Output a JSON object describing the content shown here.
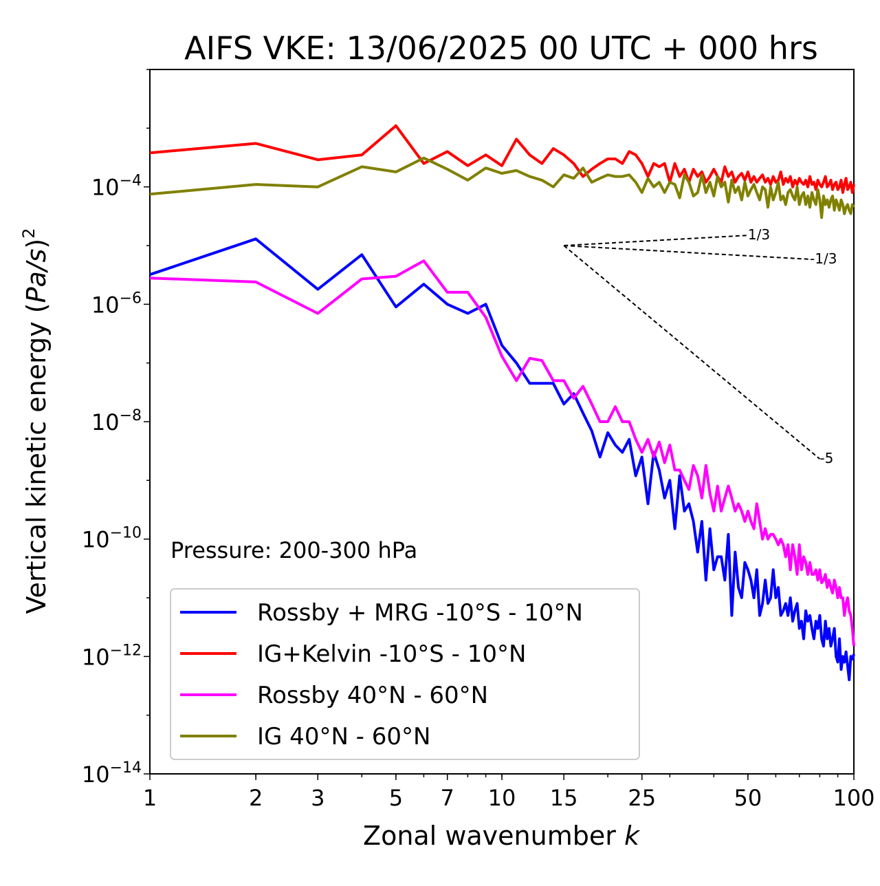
{
  "chart_data": {
    "type": "line",
    "title": "AIFS VKE: 13/06/2025 00 UTC + 000 hrs",
    "xlabel": "Zonal wavenumber k",
    "xlabel_text": "Zonal wavenumber ",
    "xlabel_var": "k",
    "ylabel": "Vertical kinetic energy (Pa/s)^2",
    "ylabel_text": "Vertical kinetic energy (",
    "ylabel_var": "Pa/s",
    "ylabel_close": ")",
    "ylabel_exp": "2",
    "xscale": "log",
    "yscale": "log",
    "xlim": [
      1,
      100
    ],
    "ylim": [
      1e-14,
      0.01
    ],
    "x_ticks": [
      1,
      2,
      3,
      5,
      7,
      10,
      15,
      25,
      50,
      100
    ],
    "x_tick_labels": [
      "1",
      "2",
      "3",
      "5",
      "7",
      "10",
      "15",
      "25",
      "50",
      "100"
    ],
    "y_ticks": [
      -14,
      -12,
      -10,
      -8,
      -6,
      -4
    ],
    "y_tick_base": "10",
    "y_tick_exps": [
      "−14",
      "−12",
      "−10",
      "−8",
      "−6",
      "−4"
    ],
    "annotation": "Pressure: 200-300 hPa",
    "legend_position": "lower-left",
    "grid": false,
    "x": [
      1,
      2,
      3,
      4,
      5,
      6,
      7,
      8,
      9,
      10,
      11,
      12,
      13,
      14,
      15,
      16,
      17,
      18,
      19,
      20,
      21,
      22,
      23,
      24,
      25,
      26,
      27,
      28,
      29,
      30,
      31,
      32,
      33,
      34,
      35,
      36,
      37,
      38,
      39,
      40,
      41,
      42,
      43,
      44,
      45,
      46,
      47,
      48,
      49,
      50,
      51,
      52,
      53,
      54,
      55,
      56,
      57,
      58,
      59,
      60,
      61,
      62,
      63,
      64,
      65,
      66,
      67,
      68,
      69,
      70,
      71,
      72,
      73,
      74,
      75,
      76,
      77,
      78,
      79,
      80,
      81,
      82,
      83,
      84,
      85,
      86,
      87,
      88,
      89,
      90,
      91,
      92,
      93,
      94,
      95,
      96,
      97,
      98,
      99,
      100
    ],
    "series": [
      {
        "name": "Rossby + MRG -10°S - 10°N",
        "color": "#0000ff",
        "values": [
          3.2e-06,
          1.3e-05,
          1.8e-06,
          7e-06,
          9e-07,
          2.2e-06,
          1e-06,
          7e-07,
          1e-06,
          2e-07,
          1e-07,
          4.5e-08,
          4.5e-08,
          4.5e-08,
          2e-08,
          3e-08,
          1.4e-08,
          7e-09,
          2.5e-09,
          6.5e-09,
          4e-09,
          3e-09,
          5e-09,
          1.2e-09,
          2.5e-09,
          4e-10,
          3e-09,
          1.5e-09,
          5e-10,
          1e-09,
          1.5e-10,
          1.2e-09,
          3e-10,
          4e-10,
          2e-10,
          6e-11,
          2e-10,
          2e-11,
          1.5e-10,
          3e-11,
          5e-11,
          5e-11,
          2e-11,
          1.2e-10,
          5e-12,
          6e-11,
          1.5e-11,
          1e-11,
          4e-11,
          3e-11,
          2e-11,
          1e-11,
          3e-11,
          5e-12,
          8e-12,
          2e-11,
          8e-12,
          1e-11,
          3e-11,
          1e-11,
          1.5e-11,
          5e-12,
          6e-12,
          8e-12,
          5e-12,
          1e-11,
          4e-12,
          6e-12,
          8e-12,
          3e-12,
          4e-12,
          2e-12,
          6e-12,
          4e-12,
          5e-12,
          3e-12,
          2e-12,
          4e-12,
          3e-12,
          5e-12,
          2e-12,
          1.5e-12,
          4e-12,
          2e-12,
          3e-12,
          1.5e-12,
          2e-12,
          3e-12,
          1e-12,
          8e-13,
          2e-12,
          6e-13,
          1e-12,
          8e-13,
          1.2e-12,
          7e-13,
          4e-13,
          1e-12,
          9e-13,
          1.1e-12
        ]
      },
      {
        "name": "IG+Kelvin -10°S - 10°N",
        "color": "#ff0000",
        "values": [
          0.00038,
          0.00055,
          0.00029,
          0.00035,
          0.0011,
          0.00025,
          0.0004,
          0.00023,
          0.00035,
          0.00023,
          0.00065,
          0.00035,
          0.00025,
          0.00045,
          0.00035,
          0.00025,
          0.00015,
          0.0002,
          0.00025,
          0.0003,
          0.0003,
          0.00025,
          0.0004,
          0.00035,
          0.00025,
          0.00015,
          0.00025,
          0.00022,
          0.00025,
          0.00012,
          0.00025,
          0.00015,
          0.0002,
          0.00012,
          0.0002,
          0.00015,
          0.00018,
          0.00012,
          0.00015,
          0.0002,
          0.00015,
          0.00012,
          0.00022,
          0.00015,
          0.00018,
          0.00012,
          0.00015,
          0.00017,
          0.00013,
          0.00018,
          0.00012,
          0.00015,
          0.00012,
          0.00014,
          0.00016,
          0.00012,
          0.00014,
          0.00011,
          0.00015,
          0.00012,
          0.00013,
          0.00018,
          0.00011,
          0.00014,
          0.00012,
          0.00015,
          0.0001,
          0.00013,
          0.00011,
          0.00014,
          0.00012,
          0.00011,
          0.00013,
          0.0001,
          0.00015,
          0.00011,
          0.00012,
          9e-05,
          0.00013,
          0.00011,
          0.0001,
          0.00012,
          0.00015,
          0.0001,
          0.00011,
          0.00013,
          9e-05,
          0.00011,
          0.00012,
          9e-05,
          0.0001,
          0.00013,
          8e-05,
          0.00011,
          0.00014,
          9e-05,
          0.0001,
          0.00012,
          8e-05,
          0.00011
        ]
      },
      {
        "name": "Rossby 40°N - 60°N",
        "color": "#ff00ff",
        "values": [
          2.8e-06,
          2.4e-06,
          7e-07,
          2.7e-06,
          3e-06,
          5.5e-06,
          1.6e-06,
          1.6e-06,
          6e-07,
          1.3e-07,
          5e-08,
          1.2e-07,
          1.1e-07,
          5e-08,
          5e-08,
          2.5e-08,
          4e-08,
          2e-08,
          1e-08,
          1e-08,
          1.8e-08,
          1e-08,
          1e-08,
          5e-09,
          3e-09,
          5e-09,
          2.5e-09,
          4.5e-09,
          2e-09,
          4e-09,
          1.5e-09,
          1.5e-09,
          1e-09,
          7e-10,
          1.8e-09,
          1.2e-09,
          5e-10,
          1.8e-09,
          6e-10,
          3e-10,
          8e-10,
          3e-10,
          5e-10,
          8e-10,
          5e-10,
          3e-10,
          4e-10,
          3e-10,
          2e-10,
          3e-10,
          2e-10,
          1.5e-10,
          4e-10,
          2e-10,
          1e-10,
          1.5e-10,
          1e-10,
          1.2e-10,
          1.2e-10,
          1e-10,
          8e-11,
          1e-10,
          8e-11,
          5e-11,
          8e-11,
          3e-11,
          8e-11,
          5e-11,
          2.5e-11,
          8e-11,
          3e-11,
          5e-11,
          4e-11,
          2.5e-11,
          4e-11,
          2.5e-11,
          2.5e-11,
          3e-11,
          2e-11,
          3e-11,
          1.8e-11,
          2e-11,
          2.5e-11,
          1.5e-11,
          2e-11,
          1.5e-11,
          1.2e-11,
          2e-11,
          1.5e-11,
          1e-11,
          1.5e-11,
          1e-11,
          1e-11,
          5e-12,
          8e-12,
          1e-11,
          6e-12,
          5e-12,
          3e-12,
          1.5e-12
        ]
      },
      {
        "name": "IG 40°N - 60°N",
        "color": "#808000",
        "values": [
          7.5e-05,
          0.00011,
          0.0001,
          0.00022,
          0.00018,
          0.00031,
          0.0002,
          0.00013,
          0.00021,
          0.00017,
          0.00019,
          0.00015,
          0.00013,
          0.0001,
          0.00016,
          0.00014,
          0.00021,
          0.00012,
          0.00014,
          0.00016,
          0.00015,
          0.00015,
          0.00016,
          0.00012,
          8e-05,
          0.00014,
          0.0001,
          0.00012,
          8e-05,
          0.00012,
          0.00011,
          6.5e-05,
          0.00016,
          0.00012,
          7e-05,
          8e-05,
          0.00016,
          8e-05,
          0.00012,
          7e-05,
          0.00015,
          0.0001,
          0.00012,
          5.5e-05,
          0.00013,
          8e-05,
          0.0001,
          6e-05,
          0.00012,
          7e-05,
          9e-05,
          0.00011,
          8e-05,
          6e-05,
          0.0001,
          9e-05,
          4.5e-05,
          0.0001,
          6e-05,
          8e-05,
          0.00012,
          6e-05,
          7e-05,
          5e-05,
          8e-05,
          9e-05,
          7e-05,
          6e-05,
          0.0001,
          5e-05,
          7e-05,
          8e-05,
          5e-05,
          7e-05,
          4.5e-05,
          8e-05,
          6e-05,
          5e-05,
          9e-05,
          6e-05,
          3e-05,
          7e-05,
          5e-05,
          6e-05,
          4.5e-05,
          6e-05,
          7e-05,
          4e-05,
          6e-05,
          5e-05,
          4e-05,
          6e-05,
          5e-05,
          3.5e-05,
          4.5e-05,
          5e-05,
          4e-05,
          3.5e-05,
          5e-05,
          4.5e-05
        ]
      }
    ],
    "reference_lines": [
      {
        "label": "1/3",
        "slope": 0.3333,
        "x0": 15,
        "y0": 1e-05,
        "x1": 50
      },
      {
        "label": "-1/3",
        "slope": -0.3333,
        "x0": 15,
        "y0": 1e-05,
        "x1": 75
      },
      {
        "label": "-5",
        "slope": -5,
        "x0": 15,
        "y0": 1e-05,
        "x1": 80
      }
    ]
  }
}
